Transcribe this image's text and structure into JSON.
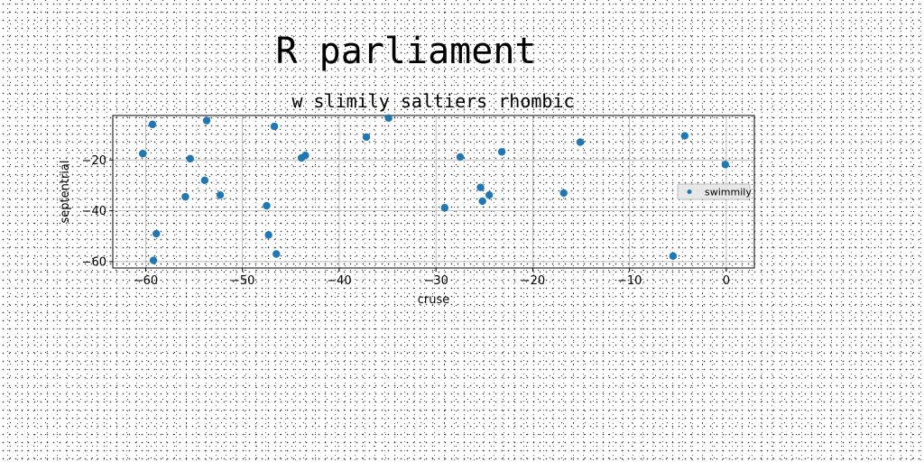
{
  "page": {
    "title": "R parliament"
  },
  "chart_data": {
    "type": "scatter",
    "title": "w slimily saltiers rhombic",
    "xlabel": "cruse",
    "ylabel": "septentrial",
    "xlim": [
      -63.4,
      2.9
    ],
    "ylim": [
      -62.5,
      -2.5
    ],
    "xticks": [
      -60,
      -50,
      -40,
      -30,
      -20,
      -10,
      0
    ],
    "yticks": [
      -60,
      -40,
      -20
    ],
    "grid": true,
    "legend_position": "center-right",
    "series": [
      {
        "name": "swimmily",
        "color": "#1f77b4",
        "x": [
          -59.3,
          -60.3,
          -55.4,
          -55.9,
          -53.9,
          -52.3,
          -53.7,
          -58.9,
          -59.2,
          -47.5,
          -47.3,
          -46.7,
          -46.5,
          -43.9,
          -43.5,
          -37.2,
          -34.9,
          -29.1,
          -27.5,
          -25.4,
          -25.2,
          -24.5,
          -23.2,
          -16.8,
          -15.1,
          -5.5,
          -4.3,
          -0.1
        ],
        "y": [
          -6.0,
          -17.5,
          -19.5,
          -34.5,
          -28.0,
          -33.8,
          -4.5,
          -49.0,
          -59.5,
          -38.0,
          -49.5,
          -6.8,
          -57.0,
          -19.2,
          -18.2,
          -11.0,
          -3.5,
          -38.8,
          -18.8,
          -30.8,
          -36.2,
          -33.8,
          -16.8,
          -33.0,
          -13.0,
          -57.8,
          -10.5,
          -21.8
        ]
      }
    ]
  }
}
